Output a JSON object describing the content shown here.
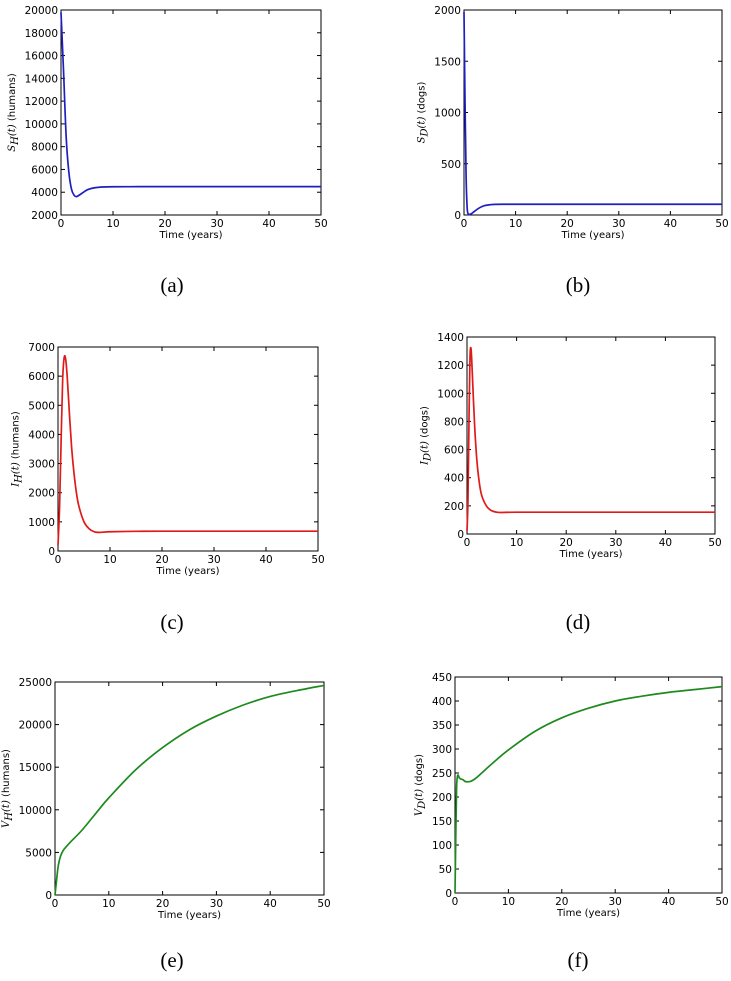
{
  "chart_data": [
    {
      "type": "line",
      "caption": "(a)",
      "xlabel": "Time (years)",
      "ylabel": {
        "symbol": "S",
        "subscript": "H",
        "arg": "(t)",
        "unit": "(humans)"
      },
      "xlim": [
        0,
        50
      ],
      "ylim": [
        2000,
        20000
      ],
      "xticks": [
        0,
        10,
        20,
        30,
        40,
        50
      ],
      "yticks": [
        2000,
        4000,
        6000,
        8000,
        10000,
        12000,
        14000,
        16000,
        18000,
        20000
      ],
      "color": "#1f1fbf",
      "series": [
        {
          "x": [
            0,
            0.5,
            1,
            1.5,
            2,
            2.5,
            3,
            4,
            5,
            6,
            7,
            8,
            10,
            15,
            20,
            30,
            40,
            50
          ],
          "y": [
            19800,
            14500,
            8800,
            5800,
            4300,
            3750,
            3620,
            3900,
            4200,
            4350,
            4420,
            4460,
            4480,
            4490,
            4490,
            4490,
            4490,
            4490
          ]
        }
      ]
    },
    {
      "type": "line",
      "caption": "(b)",
      "xlabel": "Time (years)",
      "ylabel": {
        "symbol": "S",
        "subscript": "D",
        "arg": "(t)",
        "unit": "(dogs)"
      },
      "xlim": [
        0,
        50
      ],
      "ylim": [
        0,
        2000
      ],
      "xticks": [
        0,
        10,
        20,
        30,
        40,
        50
      ],
      "yticks": [
        0,
        500,
        1000,
        1500,
        2000
      ],
      "color": "#1f1fbf",
      "series": [
        {
          "x": [
            0,
            0.2,
            0.4,
            0.6,
            0.8,
            1,
            1.5,
            2,
            3,
            4,
            5,
            6,
            8,
            10,
            20,
            30,
            40,
            50
          ],
          "y": [
            1980,
            1100,
            400,
            80,
            10,
            5,
            15,
            35,
            70,
            92,
            100,
            104,
            105,
            105,
            105,
            105,
            105,
            105
          ]
        }
      ]
    },
    {
      "type": "line",
      "caption": "(c)",
      "xlabel": "Time (years)",
      "ylabel": {
        "symbol": "I",
        "subscript": "H",
        "arg": "(t)",
        "unit": "(humans)"
      },
      "xlim": [
        0,
        50
      ],
      "ylim": [
        0,
        7000
      ],
      "xticks": [
        0,
        10,
        20,
        30,
        40,
        50
      ],
      "yticks": [
        0,
        1000,
        2000,
        3000,
        4000,
        5000,
        6000,
        7000
      ],
      "color": "#e01a1a",
      "series": [
        {
          "x": [
            0,
            0.3,
            0.6,
            0.9,
            1.2,
            1.5,
            1.8,
            2.2,
            2.6,
            3,
            3.5,
            4,
            5,
            6,
            7,
            8,
            10,
            15,
            20,
            30,
            40,
            50
          ],
          "y": [
            200,
            1500,
            3800,
            5900,
            6650,
            6550,
            5900,
            4700,
            3600,
            2800,
            2050,
            1550,
            1000,
            760,
            660,
            640,
            660,
            675,
            680,
            680,
            680,
            680
          ]
        }
      ]
    },
    {
      "type": "line",
      "caption": "(d)",
      "xlabel": "Time (years)",
      "ylabel": {
        "symbol": "I",
        "subscript": "D",
        "arg": "(t)",
        "unit": "(dogs)"
      },
      "xlim": [
        0,
        50
      ],
      "ylim": [
        0,
        1400
      ],
      "xticks": [
        0,
        10,
        20,
        30,
        40,
        50
      ],
      "yticks": [
        0,
        200,
        400,
        600,
        800,
        1000,
        1200,
        1400
      ],
      "color": "#e01a1a",
      "series": [
        {
          "x": [
            0,
            0.2,
            0.4,
            0.6,
            0.8,
            1,
            1.3,
            1.6,
            2,
            2.5,
            3,
            4,
            5,
            6,
            7,
            10,
            20,
            30,
            40,
            50
          ],
          "y": [
            20,
            250,
            800,
            1250,
            1320,
            1200,
            950,
            730,
            520,
            360,
            270,
            195,
            165,
            155,
            153,
            155,
            155,
            155,
            155,
            155
          ]
        }
      ]
    },
    {
      "type": "line",
      "caption": "(e)",
      "xlabel": "Time (years)",
      "ylabel": {
        "symbol": "V",
        "subscript": "H",
        "arg": "(t)",
        "unit": "(humans)"
      },
      "xlim": [
        0,
        50
      ],
      "ylim": [
        0,
        25000
      ],
      "xticks": [
        0,
        10,
        20,
        30,
        40,
        50
      ],
      "yticks": [
        0,
        5000,
        10000,
        15000,
        20000,
        25000
      ],
      "color": "#1e8a1e",
      "series": [
        {
          "x": [
            0,
            0.3,
            0.6,
            1,
            1.5,
            2,
            3,
            5,
            8,
            10,
            15,
            20,
            25,
            30,
            35,
            40,
            45,
            50
          ],
          "y": [
            0,
            1800,
            3400,
            4500,
            5200,
            5600,
            6300,
            7600,
            9900,
            11400,
            14700,
            17300,
            19400,
            21000,
            22300,
            23300,
            24000,
            24600
          ]
        }
      ]
    },
    {
      "type": "line",
      "caption": "(f)",
      "xlabel": "Time (years)",
      "ylabel": {
        "symbol": "V",
        "subscript": "D",
        "arg": "(t)",
        "unit": "(dogs)"
      },
      "xlim": [
        0,
        50
      ],
      "ylim": [
        0,
        450
      ],
      "xticks": [
        0,
        10,
        20,
        30,
        40,
        50
      ],
      "yticks": [
        0,
        50,
        100,
        150,
        200,
        250,
        300,
        350,
        400,
        450
      ],
      "color": "#1e8a1e",
      "series": [
        {
          "x": [
            0,
            0.15,
            0.3,
            0.5,
            0.8,
            1,
            1.5,
            2,
            3,
            4,
            5,
            7,
            10,
            15,
            20,
            25,
            30,
            35,
            40,
            45,
            50
          ],
          "y": [
            0,
            120,
            220,
            245,
            240,
            238,
            236,
            232,
            233,
            240,
            250,
            270,
            298,
            337,
            365,
            385,
            400,
            410,
            418,
            424,
            430
          ]
        }
      ]
    }
  ]
}
